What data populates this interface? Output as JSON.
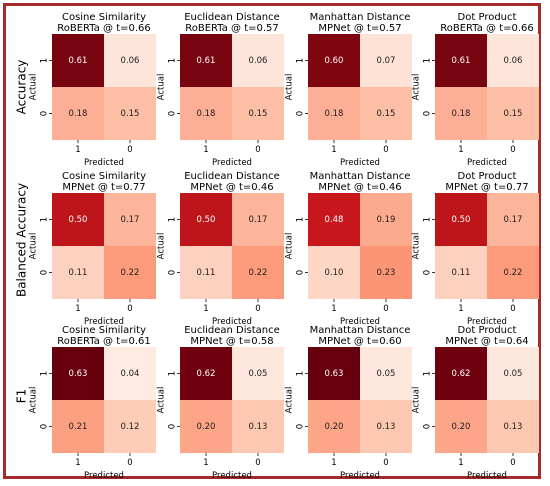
{
  "colors": {
    "frame": "#a52a2a",
    "cmap_low": "#fff5f0",
    "cmap_high": "#67000d"
  },
  "chart_data": {
    "type": "heatmap",
    "row_labels": [
      "Accuracy",
      "Balanced Accuracy",
      "F1"
    ],
    "predicted_labels": [
      "1",
      "0"
    ],
    "actual_labels": [
      "1",
      "0"
    ],
    "xlabel": "Predicted",
    "ylabel": "Actual",
    "color_scale": [
      0,
      0.63
    ],
    "panels": [
      {
        "row": 0,
        "col": 0,
        "title": "Cosine Similarity",
        "subtitle": "RoBERTa @ t=0.66",
        "matrix": [
          [
            0.61,
            0.06
          ],
          [
            0.18,
            0.15
          ]
        ]
      },
      {
        "row": 0,
        "col": 1,
        "title": "Euclidean Distance",
        "subtitle": "RoBERTa @ t=0.57",
        "matrix": [
          [
            0.61,
            0.06
          ],
          [
            0.18,
            0.15
          ]
        ]
      },
      {
        "row": 0,
        "col": 2,
        "title": "Manhattan Distance",
        "subtitle": "MPNet @ t=0.57",
        "matrix": [
          [
            0.6,
            0.07
          ],
          [
            0.18,
            0.15
          ]
        ]
      },
      {
        "row": 0,
        "col": 3,
        "title": "Dot Product",
        "subtitle": "RoBERTa @ t=0.66",
        "matrix": [
          [
            0.61,
            0.06
          ],
          [
            0.18,
            0.15
          ]
        ]
      },
      {
        "row": 1,
        "col": 0,
        "title": "Cosine Similarity",
        "subtitle": "MPNet @ t=0.77",
        "matrix": [
          [
            0.5,
            0.17
          ],
          [
            0.11,
            0.22
          ]
        ]
      },
      {
        "row": 1,
        "col": 1,
        "title": "Euclidean Distance",
        "subtitle": "MPNet @ t=0.46",
        "matrix": [
          [
            0.5,
            0.17
          ],
          [
            0.11,
            0.22
          ]
        ]
      },
      {
        "row": 1,
        "col": 2,
        "title": "Manhattan Distance",
        "subtitle": "MPNet @ t=0.46",
        "matrix": [
          [
            0.48,
            0.19
          ],
          [
            0.1,
            0.23
          ]
        ]
      },
      {
        "row": 1,
        "col": 3,
        "title": "Dot Product",
        "subtitle": "MPNet @ t=0.77",
        "matrix": [
          [
            0.5,
            0.17
          ],
          [
            0.11,
            0.22
          ]
        ]
      },
      {
        "row": 2,
        "col": 0,
        "title": "Cosine Similarity",
        "subtitle": "RoBERTa @ t=0.61",
        "matrix": [
          [
            0.63,
            0.04
          ],
          [
            0.21,
            0.12
          ]
        ]
      },
      {
        "row": 2,
        "col": 1,
        "title": "Euclidean Distance",
        "subtitle": "MPNet @ t=0.58",
        "matrix": [
          [
            0.62,
            0.05
          ],
          [
            0.2,
            0.13
          ]
        ]
      },
      {
        "row": 2,
        "col": 2,
        "title": "Manhattan Distance",
        "subtitle": "MPNet @ t=0.60",
        "matrix": [
          [
            0.63,
            0.05
          ],
          [
            0.2,
            0.13
          ]
        ]
      },
      {
        "row": 2,
        "col": 3,
        "title": "Dot Product",
        "subtitle": "MPNet @ t=0.64",
        "matrix": [
          [
            0.62,
            0.05
          ],
          [
            0.2,
            0.13
          ]
        ]
      }
    ]
  }
}
